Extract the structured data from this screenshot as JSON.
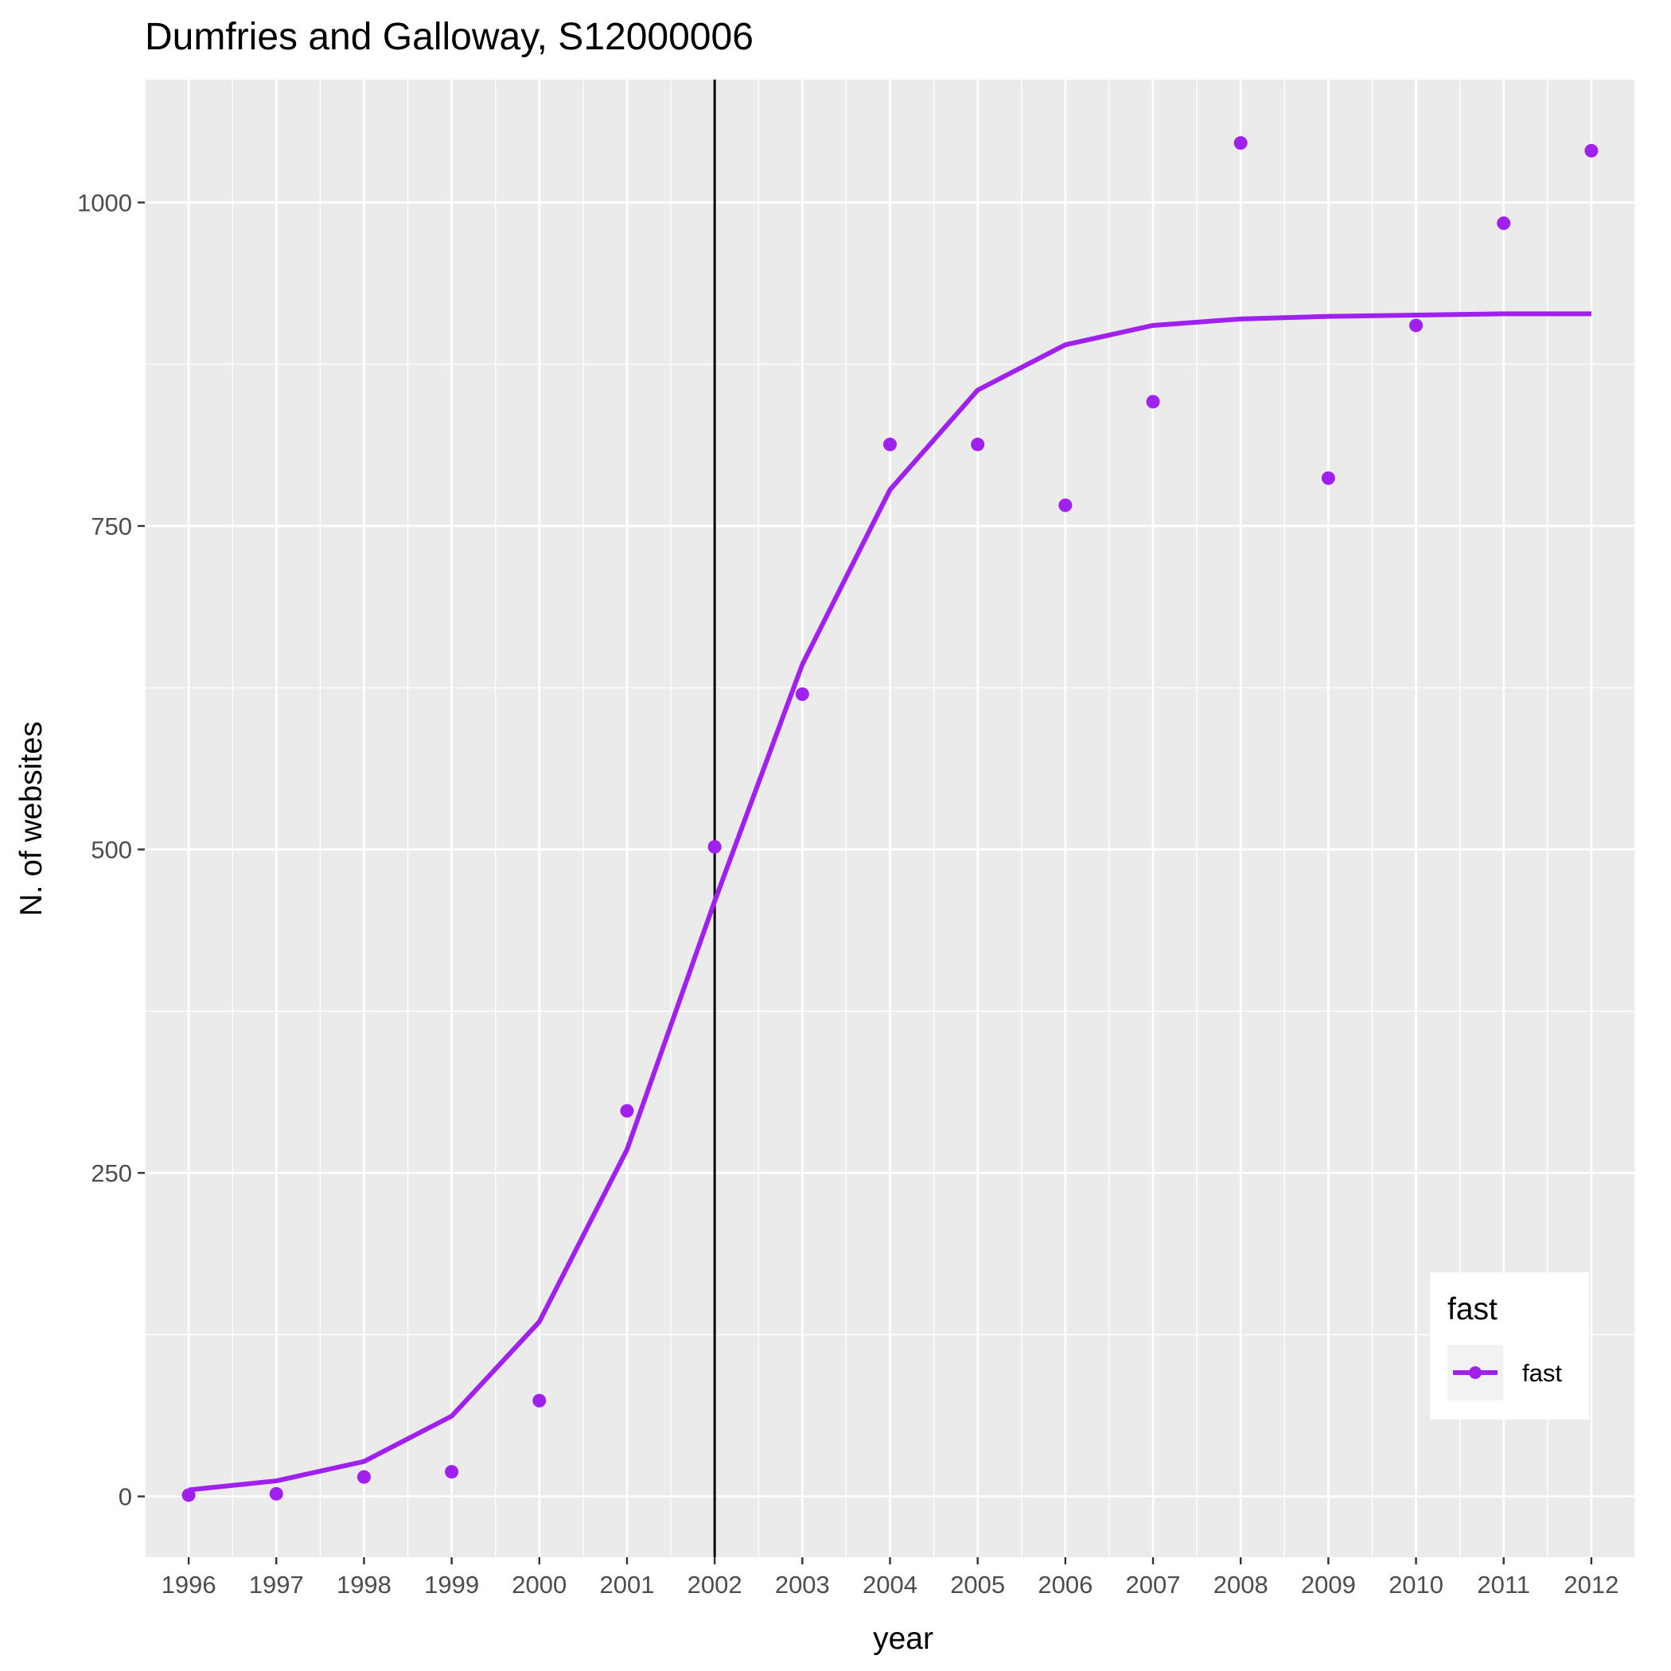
{
  "chart_data": {
    "type": "line",
    "title": "Dumfries and Galloway, S12000006",
    "xlabel": "year",
    "ylabel": "N. of websites",
    "x": [
      1996,
      1997,
      1998,
      1999,
      2000,
      2001,
      2002,
      2003,
      2004,
      2005,
      2006,
      2007,
      2008,
      2009,
      2010,
      2011,
      2012
    ],
    "x_tick_labels": [
      "1996",
      "1997",
      "1998",
      "1999",
      "2000",
      "2001",
      "2002",
      "2003",
      "2004",
      "2005",
      "2006",
      "2007",
      "2008",
      "2009",
      "2010",
      "2011",
      "2012"
    ],
    "y_ticks": [
      0,
      250,
      500,
      750,
      1000
    ],
    "y_tick_labels": [
      "0",
      "250",
      "500",
      "750",
      "1000"
    ],
    "xlim": [
      1995.5,
      2012.5
    ],
    "ylim": [
      -47,
      1095
    ],
    "grid": true,
    "vline_x": 2002,
    "series": [
      {
        "name": "fast",
        "kind": "points",
        "values": [
          1,
          2,
          15,
          19,
          74,
          298,
          502,
          620,
          813,
          813,
          766,
          846,
          1046,
          787,
          905,
          984,
          1040
        ]
      },
      {
        "name": "fast",
        "kind": "line",
        "values": [
          5,
          12,
          27,
          62,
          135,
          268,
          460,
          643,
          778,
          855,
          890,
          905,
          910,
          912,
          913,
          914,
          914
        ]
      }
    ],
    "legend": {
      "title": "fast",
      "entries": [
        "fast"
      ],
      "position": "bottom-right"
    },
    "colors": {
      "series": "#a020f0",
      "vline": "#000000",
      "panel": "#ebebeb",
      "grid": "#ffffff"
    }
  }
}
